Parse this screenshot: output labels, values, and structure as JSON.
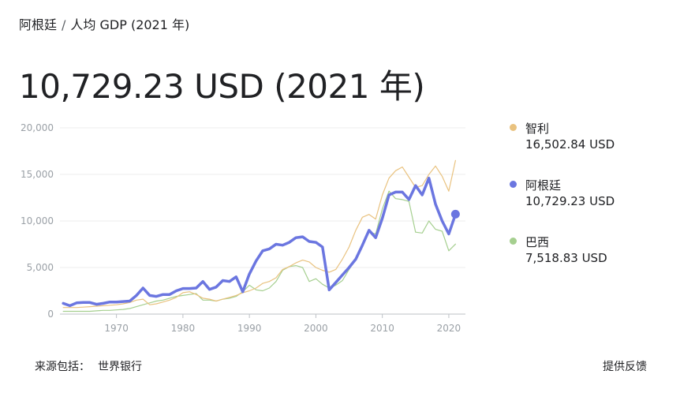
{
  "breadcrumb": {
    "country": "阿根廷",
    "separator": "/",
    "metric": "人均 GDP (2021 年)"
  },
  "headline": "10,729.23 USD (2021 年)",
  "legend": [
    {
      "name": "智利",
      "value": "16,502.84 USD",
      "color": "#e9c27f"
    },
    {
      "name": "阿根廷",
      "value": "10,729.23 USD",
      "color": "#6b76e0"
    },
    {
      "name": "巴西",
      "value": "7,518.83 USD",
      "color": "#a5cf8f"
    }
  ],
  "footer": {
    "source_label": "来源包括：",
    "source_value": "世界银行",
    "feedback": "提供反馈"
  },
  "chart_data": {
    "type": "line",
    "x": [
      1962,
      1963,
      1964,
      1965,
      1966,
      1967,
      1968,
      1969,
      1970,
      1971,
      1972,
      1973,
      1974,
      1975,
      1976,
      1977,
      1978,
      1979,
      1980,
      1981,
      1982,
      1983,
      1984,
      1985,
      1986,
      1987,
      1988,
      1989,
      1990,
      1991,
      1992,
      1993,
      1994,
      1995,
      1996,
      1997,
      1998,
      1999,
      2000,
      2001,
      2002,
      2003,
      2004,
      2005,
      2006,
      2007,
      2008,
      2009,
      2010,
      2011,
      2012,
      2013,
      2014,
      2015,
      2016,
      2017,
      2018,
      2019,
      2020,
      2021
    ],
    "series": [
      {
        "name": "智利",
        "color": "#e9c27f",
        "values": [
          700,
          700,
          700,
          750,
          800,
          850,
          900,
          950,
          1000,
          1100,
          1250,
          1500,
          1600,
          1000,
          1100,
          1300,
          1500,
          1800,
          2300,
          2400,
          2100,
          1700,
          1600,
          1400,
          1600,
          1800,
          2000,
          2300,
          2500,
          2800,
          3300,
          3500,
          3900,
          4800,
          5100,
          5500,
          5800,
          5600,
          5000,
          4700,
          4500,
          4800,
          5900,
          7200,
          9000,
          10400,
          10700,
          10200,
          12800,
          14600,
          15400,
          15800,
          14700,
          13600,
          13800,
          15000,
          15900,
          14800,
          13200,
          16502.84
        ]
      },
      {
        "name": "阿根廷",
        "color": "#6b76e0",
        "values": [
          1150,
          900,
          1200,
          1250,
          1250,
          1050,
          1150,
          1300,
          1300,
          1350,
          1400,
          2000,
          2800,
          2000,
          1900,
          2100,
          2100,
          2500,
          2750,
          2750,
          2800,
          3500,
          2650,
          2900,
          3600,
          3500,
          4000,
          2400,
          4300,
          5700,
          6800,
          7000,
          7500,
          7400,
          7700,
          8200,
          8300,
          7800,
          7700,
          7200,
          2600,
          3400,
          4200,
          5000,
          5900,
          7400,
          9000,
          8200,
          10300,
          12800,
          13100,
          13100,
          12300,
          13800,
          12800,
          14600,
          11800,
          10000,
          8600,
          10729.23
        ]
      },
      {
        "name": "巴西",
        "color": "#a5cf8f",
        "values": [
          300,
          300,
          300,
          300,
          300,
          350,
          400,
          400,
          450,
          500,
          600,
          800,
          1000,
          1200,
          1400,
          1500,
          1700,
          1900,
          2000,
          2100,
          2200,
          1500,
          1500,
          1400,
          1600,
          1700,
          1900,
          2400,
          3100,
          2600,
          2500,
          2800,
          3500,
          4700,
          5100,
          5200,
          5000,
          3500,
          3800,
          3200,
          2800,
          3100,
          3600,
          4800,
          5900,
          7300,
          8800,
          8600,
          11300,
          13200,
          12400,
          12300,
          12100,
          8800,
          8700,
          10000,
          9100,
          8900,
          6800,
          7518.83
        ]
      }
    ],
    "ylim": [
      0,
      20000
    ],
    "yticks": [
      "0",
      "5,000",
      "10,000",
      "15,000",
      "20,000"
    ],
    "ytick_values": [
      0,
      5000,
      10000,
      15000,
      20000
    ],
    "xticks": [
      "1970",
      "1980",
      "1990",
      "2000",
      "2010",
      "2020"
    ],
    "xtick_values": [
      1970,
      1980,
      1990,
      2000,
      2010,
      2020
    ],
    "xlim": [
      1961.5,
      2022.5
    ],
    "grid": true,
    "legend_position": "right"
  }
}
